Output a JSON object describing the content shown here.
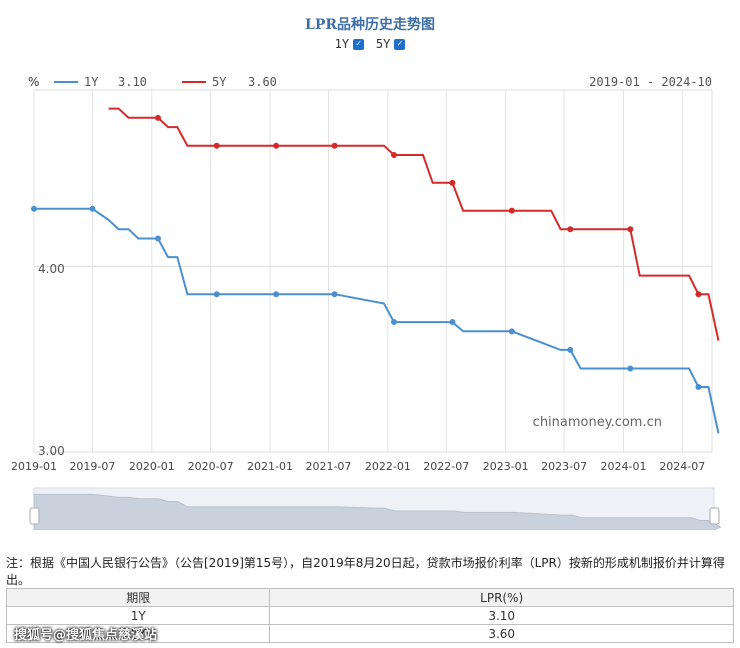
{
  "page": {
    "title": "LPR品种历史走势图",
    "toggles": [
      {
        "label": "1Y",
        "checked": true
      },
      {
        "label": "5Y",
        "checked": true
      }
    ],
    "footnote": "注：根据《中国人民银行公告》（公告[2019]第15号），自2019年8月20日起，贷款市场报价利率（LPR）按新的形成机制报价并计算得出。",
    "watermark": "搜狐号@搜狐焦点慈溪站",
    "chart_watermark": "chinamoney.com.cn"
  },
  "table": {
    "headers": [
      "期限",
      "LPR(%)"
    ],
    "rows": [
      [
        "1Y",
        "3.10"
      ],
      [
        "5Y",
        "3.60"
      ]
    ]
  },
  "chart_data": {
    "type": "line",
    "ylabel": "%",
    "date_range": "2019-01 - 2024-10",
    "xlim": [
      "2019-01",
      "2024-10"
    ],
    "ylim": [
      3.0,
      4.95
    ],
    "y_ticks": [
      "4.00",
      "3.00"
    ],
    "x_ticks": [
      "2019-01",
      "2019-07",
      "2020-01",
      "2020-07",
      "2021-01",
      "2021-07",
      "2022-01",
      "2022-07",
      "2023-01",
      "2023-07",
      "2024-01",
      "2024-07"
    ],
    "grid": true,
    "legend_position": "top-left",
    "series": [
      {
        "name": "1Y",
        "last": "3.10",
        "color": "#4a90d0",
        "x": [
          "2019-01-01",
          "2019-07-01",
          "2019-08-20",
          "2019-09-20",
          "2019-10-21",
          "2019-11-20",
          "2019-12-20",
          "2020-01-20",
          "2020-02-20",
          "2020-03-20",
          "2020-04-20",
          "2020-07-20",
          "2021-01-20",
          "2021-07-20",
          "2021-12-20",
          "2022-01-20",
          "2022-07-20",
          "2022-08-22",
          "2023-01-20",
          "2023-06-20",
          "2023-07-20",
          "2023-08-21",
          "2024-01-22",
          "2024-07-22",
          "2024-08-20",
          "2024-09-20",
          "2024-10-21"
        ],
        "values": [
          4.31,
          4.31,
          4.25,
          4.2,
          4.2,
          4.15,
          4.15,
          4.15,
          4.05,
          4.05,
          3.85,
          3.85,
          3.85,
          3.85,
          3.8,
          3.7,
          3.7,
          3.65,
          3.65,
          3.55,
          3.55,
          3.45,
          3.45,
          3.45,
          3.35,
          3.35,
          3.1
        ],
        "markers": [
          "2019-01-01",
          "2019-07-01",
          "2020-01-20",
          "2020-07-20",
          "2021-01-20",
          "2021-07-20",
          "2022-01-20",
          "2022-07-20",
          "2023-01-20",
          "2023-07-20",
          "2024-01-22",
          "2024-08-20"
        ]
      },
      {
        "name": "5Y",
        "last": "3.60",
        "color": "#d42a2a",
        "x": [
          "2019-08-20",
          "2019-09-20",
          "2019-10-21",
          "2019-11-20",
          "2020-01-20",
          "2020-02-20",
          "2020-03-20",
          "2020-04-20",
          "2020-07-20",
          "2021-01-20",
          "2021-07-20",
          "2021-12-20",
          "2022-01-20",
          "2022-04-20",
          "2022-05-20",
          "2022-07-20",
          "2022-08-22",
          "2023-01-20",
          "2023-05-22",
          "2023-06-20",
          "2023-07-20",
          "2024-01-22",
          "2024-02-20",
          "2024-07-22",
          "2024-08-20",
          "2024-09-20",
          "2024-10-21"
        ],
        "values": [
          4.85,
          4.85,
          4.8,
          4.8,
          4.8,
          4.75,
          4.75,
          4.65,
          4.65,
          4.65,
          4.65,
          4.65,
          4.6,
          4.6,
          4.45,
          4.45,
          4.3,
          4.3,
          4.3,
          4.2,
          4.2,
          4.2,
          3.95,
          3.95,
          3.85,
          3.85,
          3.6
        ],
        "markers": [
          "2020-01-20",
          "2020-07-20",
          "2021-01-20",
          "2021-07-20",
          "2022-01-20",
          "2022-07-20",
          "2023-01-20",
          "2023-07-20",
          "2024-01-22",
          "2024-08-20"
        ]
      }
    ]
  }
}
